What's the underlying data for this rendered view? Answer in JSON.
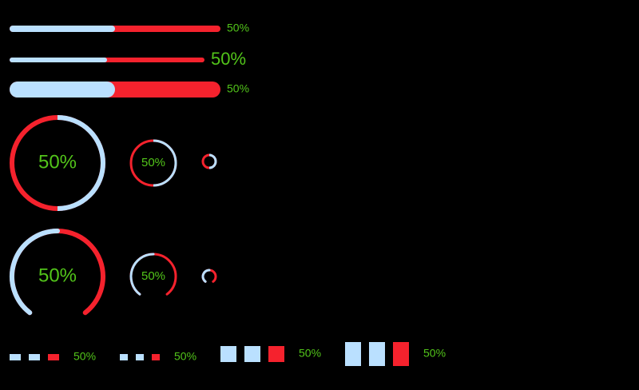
{
  "bars": [
    {
      "percent": 50,
      "label": "50%"
    },
    {
      "percent": 50,
      "label": "50%"
    },
    {
      "percent": 50,
      "label": "50%"
    }
  ],
  "circles": [
    {
      "percent": 50,
      "label": "50%"
    },
    {
      "percent": 50,
      "label": "50%"
    },
    {
      "percent": 50
    }
  ],
  "dashboards": [
    {
      "percent": 50,
      "label": "50%"
    },
    {
      "percent": 50,
      "label": "50%"
    },
    {
      "percent": 50
    }
  ],
  "steps": [
    {
      "percent": 50,
      "label": "50%",
      "steps": 3
    },
    {
      "percent": 50,
      "label": "50%",
      "steps": 3
    },
    {
      "percent": 50,
      "label": "50%",
      "steps": 3
    },
    {
      "percent": 50,
      "label": "50%",
      "steps": 3
    }
  ]
}
